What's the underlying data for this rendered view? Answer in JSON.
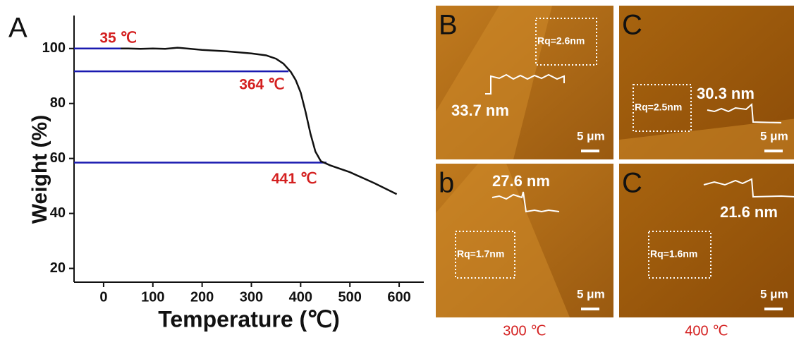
{
  "chart_data": {
    "type": "line",
    "panel": "A",
    "x_label": "Temperature (℃)",
    "y_label": "Weight (%)",
    "x": [
      35,
      50,
      75,
      100,
      125,
      150,
      200,
      250,
      300,
      330,
      350,
      365,
      380,
      390,
      400,
      410,
      420,
      430,
      441,
      460,
      500,
      550,
      595
    ],
    "values": [
      100,
      100,
      99.9,
      100,
      99.9,
      100.3,
      99.5,
      99,
      98.2,
      97.5,
      96.3,
      94.5,
      91.5,
      88.5,
      84,
      77,
      69,
      62.5,
      59,
      57.5,
      55,
      51,
      47
    ],
    "color": "#111111",
    "annotations": [
      {
        "text": "35 ℃",
        "x": 35,
        "y": 100
      },
      {
        "text": "364 ℃",
        "x": 364,
        "y": 91.7
      },
      {
        "text": "441 ℃",
        "x": 441,
        "y": 58.5
      }
    ],
    "annotation_color": "#1a1ab0",
    "xlim": [
      -60,
      650
    ],
    "ylim": [
      15,
      112
    ],
    "xticks": [
      0,
      100,
      200,
      300,
      400,
      500,
      600
    ],
    "yticks": [
      20,
      40,
      60,
      80,
      100
    ]
  },
  "images": [
    {
      "label": "B",
      "rq": "Rq=2.6nm",
      "height": "33.7 nm",
      "scale": "5 μm"
    },
    {
      "label": "C",
      "rq": "Rq=2.5nm",
      "height": "30.3 nm",
      "scale": "5 μm"
    },
    {
      "label": "b",
      "rq": "Rq=1.7nm",
      "height": "27.6 nm",
      "scale": "5 μm"
    },
    {
      "label": "C",
      "rq": "Rq=1.6nm",
      "height": "21.6 nm",
      "scale": "5 μm"
    }
  ],
  "captions": [
    "300 ℃",
    "400 ℃"
  ]
}
